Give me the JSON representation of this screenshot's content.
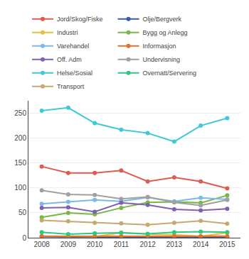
{
  "chart_data": {
    "type": "line",
    "x": [
      2008,
      2009,
      2010,
      2011,
      2012,
      2013,
      2014,
      2015
    ],
    "series": [
      {
        "name": "Jord/Skog/Fiske",
        "color": "#e05a4e",
        "values": [
          143,
          130,
          130,
          135,
          113,
          121,
          113,
          99
        ]
      },
      {
        "name": "Olje/Bergverk",
        "color": "#3a5ba8",
        "values": [
          2,
          1,
          1,
          1,
          1,
          1,
          1,
          1
        ]
      },
      {
        "name": "Industri",
        "color": "#e0c040",
        "values": [
          3,
          2,
          2,
          10,
          7,
          6,
          3,
          10
        ]
      },
      {
        "name": "Bygg og Anlegg",
        "color": "#7ab648",
        "values": [
          41,
          50,
          47,
          60,
          71,
          72,
          70,
          85
        ]
      },
      {
        "name": "Varehandel",
        "color": "#7ab8e8",
        "values": [
          68,
          72,
          76,
          73,
          81,
          73,
          80,
          77
        ]
      },
      {
        "name": "Informasjon",
        "color": "#e07030",
        "values": [
          3,
          3,
          3,
          3,
          4,
          3,
          3,
          3
        ]
      },
      {
        "name": "Off. Adm",
        "color": "#8060b0",
        "values": [
          60,
          61,
          52,
          70,
          66,
          57,
          55,
          58
        ]
      },
      {
        "name": "Undervisning",
        "color": "#a0a0a0",
        "values": [
          95,
          87,
          86,
          78,
          82,
          71,
          65,
          76
        ]
      },
      {
        "name": "Helse/Sosial",
        "color": "#40c8d8",
        "values": [
          255,
          261,
          230,
          217,
          210,
          193,
          225,
          240
        ]
      },
      {
        "name": "Overnatt/Servering",
        "color": "#30c880",
        "values": [
          11,
          7,
          9,
          10,
          8,
          11,
          12,
          11
        ]
      },
      {
        "name": "Transport",
        "color": "#c8a870",
        "values": [
          35,
          33,
          30,
          29,
          26,
          30,
          34,
          28
        ]
      }
    ],
    "xlim": [
      2007.5,
      2015.5
    ],
    "ylim": [
      0,
      275
    ],
    "xticks": [
      2008,
      2009,
      2010,
      2011,
      2012,
      2013,
      2014,
      2015
    ],
    "yticks": [
      0,
      50,
      100,
      150,
      200,
      250
    ],
    "grid": true,
    "marker": "circle",
    "legend": "top"
  }
}
